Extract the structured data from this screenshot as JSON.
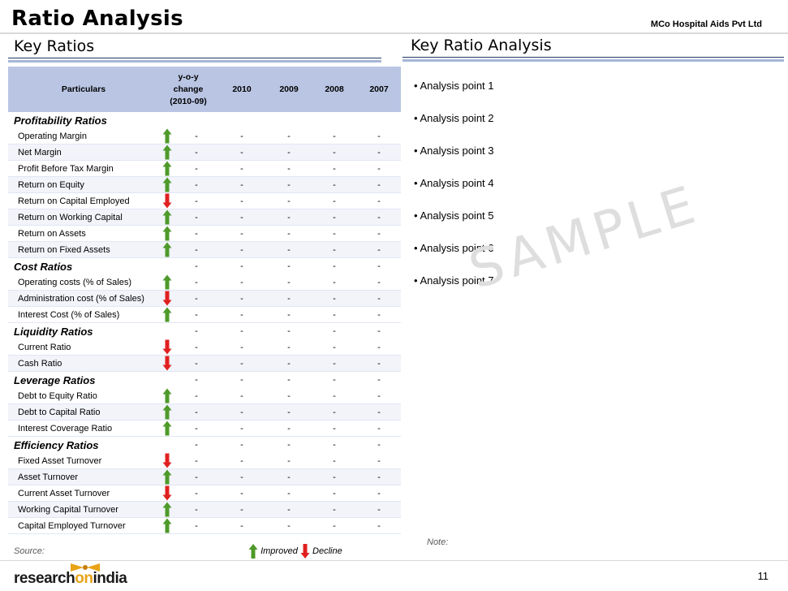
{
  "header": {
    "title": "Ratio Analysis",
    "company": "MCo Hospital Aids Pvt Ltd"
  },
  "left_section": {
    "title": "Key Ratios"
  },
  "right_section": {
    "title": "Key Ratio Analysis"
  },
  "table": {
    "columns": [
      "Particulars",
      "y-o-y\nchange\n(2010-09)",
      "2010",
      "2009",
      "2008",
      "2007"
    ],
    "groups": [
      {
        "category": "Profitability Ratios",
        "cat_values": false,
        "rows": [
          {
            "name": "Operating Margin",
            "trend": "up"
          },
          {
            "name": "Net Margin",
            "trend": "up"
          },
          {
            "name": "Profit Before Tax Margin",
            "trend": "up"
          },
          {
            "name": "Return on Equity",
            "trend": "up"
          },
          {
            "name": "Return on Capital Employed",
            "trend": "down"
          },
          {
            "name": "Return on Working Capital",
            "trend": "up"
          },
          {
            "name": "Return on Assets",
            "trend": "up"
          },
          {
            "name": "Return on Fixed Assets",
            "trend": "up"
          }
        ]
      },
      {
        "category": "Cost Ratios",
        "cat_values": true,
        "rows": [
          {
            "name": "Operating costs (% of Sales)",
            "trend": "up"
          },
          {
            "name": "Administration cost (% of Sales)",
            "trend": "down"
          },
          {
            "name": "Interest Cost (% of Sales)",
            "trend": "up"
          }
        ]
      },
      {
        "category": "Liquidity Ratios",
        "cat_values": true,
        "rows": [
          {
            "name": "Current Ratio",
            "trend": "down"
          },
          {
            "name": "Cash Ratio",
            "trend": "down"
          }
        ]
      },
      {
        "category": "Leverage Ratios",
        "cat_values": true,
        "rows": [
          {
            "name": "Debt to Equity Ratio",
            "trend": "up"
          },
          {
            "name": "Debt to Capital Ratio",
            "trend": "up"
          },
          {
            "name": "Interest Coverage Ratio",
            "trend": "up"
          }
        ]
      },
      {
        "category": "Efficiency Ratios",
        "cat_values": true,
        "rows": [
          {
            "name": "Fixed Asset Turnover",
            "trend": "down"
          },
          {
            "name": "Asset Turnover",
            "trend": "up"
          },
          {
            "name": "Current Asset Turnover",
            "trend": "down"
          },
          {
            "name": "Working Capital Turnover",
            "trend": "up"
          },
          {
            "name": "Capital Employed Turnover",
            "trend": "up"
          }
        ]
      }
    ],
    "placeholder": "-"
  },
  "analysis_points": [
    "• Analysis point 1",
    "• Analysis point 2",
    "• Analysis point 3",
    "• Analysis point 4",
    "• Analysis point 5",
    "• Analysis point 6",
    "• Analysis point 7"
  ],
  "watermark": "SAMPLE",
  "footer": {
    "note": "Note:",
    "source": "Source:",
    "legend_improved": "Improved",
    "legend_decline": "Decline",
    "logo_research": "research",
    "logo_on": "on",
    "logo_india": "india",
    "page_number": "11"
  },
  "colors": {
    "up": "#4e9a2a",
    "down": "#e02020",
    "header_fill": "#b9c5e3",
    "logo_accent": "#e8a317"
  }
}
